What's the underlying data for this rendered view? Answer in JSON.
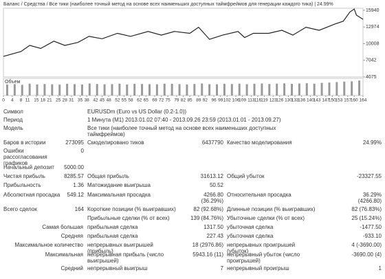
{
  "chart_data": {
    "type": "line",
    "title": "Баланс / Средства / Все тики (наиболее точный метод на основе всех наименьших доступных таймфреймов для генерации каждого тика) | 24.99%",
    "x": [
      0,
      8,
      12,
      17,
      23,
      28,
      34,
      39,
      45,
      52,
      58,
      66,
      72,
      78,
      85,
      89,
      94,
      100,
      107,
      110,
      114,
      121,
      127,
      132,
      138,
      144,
      151,
      155,
      158,
      160,
      161,
      164
    ],
    "series": [
      {
        "color": "#222222",
        "values": [
          7740,
          8600,
          9700,
          9150,
          10440,
          9690,
          10230,
          11300,
          10870,
          11840,
          11300,
          12170,
          11520,
          12170,
          11840,
          12920,
          10770,
          11520,
          12170,
          11090,
          11840,
          11840,
          12380,
          11520,
          12920,
          12380,
          13460,
          14000,
          15620,
          16160,
          15080,
          14330
        ]
      }
    ],
    "xlim": [
      0,
      164
    ],
    "xticks": [
      0,
      4,
      8,
      11,
      15,
      18,
      21,
      25,
      28,
      31,
      35,
      38,
      42,
      45,
      48,
      52,
      55,
      58,
      62,
      65,
      69,
      72,
      75,
      79,
      82,
      85,
      89,
      92,
      96,
      99,
      102,
      106,
      109,
      113,
      116,
      119,
      123,
      126,
      130,
      133,
      136,
      140,
      143,
      147,
      150,
      153,
      157,
      160,
      164
    ],
    "ylim": [
      4075,
      16300
    ],
    "yticks": [
      4075,
      7042,
      10008,
      12974,
      15940
    ],
    "volume_label": "Объем",
    "volume_color": "#9a9a9a",
    "volume_ylim": [
      0,
      100
    ],
    "volume_values": [
      70,
      72,
      68,
      75,
      70,
      73,
      71,
      69,
      74,
      72,
      70,
      76,
      73,
      71,
      72,
      75,
      70,
      74,
      73,
      72,
      71,
      75,
      74,
      72,
      70,
      73,
      76,
      72,
      71,
      74,
      73,
      75,
      72,
      74,
      76,
      73,
      75,
      77,
      74,
      76,
      78,
      75,
      80,
      82,
      85,
      88,
      90,
      95
    ]
  },
  "report": {
    "rows": [
      {
        "label": "Символ",
        "info": "EURUSDm (Euro vs US Dollar (0.2-1.0))"
      },
      {
        "label": "Период",
        "info": "1 Минута (M1) 2013.01.02 07:40 - 2013.09.26 23:59 (2013.01.01 - 2013.09.27)"
      },
      {
        "label": "Модель",
        "info": "Все тики (наиболее точный метод на основе всех наименьших доступных таймфреймов)"
      },
      {
        "label": "Баров в истории",
        "value": "273095",
        "label2": "Смоделировано тиков",
        "value2": "6437790",
        "label3": "Качество моделирования",
        "value3": "24.99%"
      },
      {
        "label": "Ошибки рассогласования графиков",
        "value": "0"
      },
      {
        "label": "Начальный депозит",
        "value": "5000.00"
      },
      {
        "label": "Чистая прибыль",
        "value": "8285.57",
        "label2": "Общая прибыль",
        "value2": "31613.12",
        "label3": "Общий убыток",
        "value3": "-23327.55"
      },
      {
        "label": "Прибыльность",
        "value": "1.36",
        "label2": "Матожидание выигрыша",
        "value2": "50.52"
      },
      {
        "label": "Абсолютная просадка",
        "value": "549.12",
        "label2": "Максимальная просадка",
        "value2": "4266.80 (36.29%)",
        "label3": "Относительная просадка",
        "value3": "36.29% (4266.80)"
      },
      {
        "label": "Всего сделок",
        "value": "164",
        "label2": "Короткие позиции (% выигравших)",
        "value2": "82 (92.68%)",
        "label3": "Длинные позиции (% выигравших)",
        "value3": "82 (76.83%)"
      },
      {
        "label2": "Прибыльные сделки (% от всех)",
        "value2": "139 (84.76%)",
        "label3": "Убыточные сделки (% от всех)",
        "value3": "25 (15.24%)"
      },
      {
        "prefix": "Самая большая",
        "label2": "прибыльная сделка",
        "value2": "1317.50",
        "label3": "убыточная сделка",
        "value3": "-1477.50"
      },
      {
        "prefix": "Средняя",
        "label2": "прибыльная сделка",
        "value2": "227.43",
        "label3": "убыточная сделка",
        "value3": "-933.10"
      },
      {
        "prefix": "Максимальное количество",
        "label2": "непрерывных выигрышей (прибыль)",
        "value2": "18 (2976.86)",
        "label3": "непрерывных проигрышей (убыток)",
        "value3": "4 (-3690.00)"
      },
      {
        "prefix": "Максимальная",
        "label2": "непрерывная прибыль (число выигрышей)",
        "value2": "5943.16 (11)",
        "label3": "непрерывный убыток (число проигрышей)",
        "value3": "-3690.00 (4)"
      },
      {
        "prefix": "Средний",
        "label2": "непрерывный выигрыш",
        "value2": "7",
        "label3": "непрерывный проигрыш",
        "value3": "1"
      }
    ]
  }
}
